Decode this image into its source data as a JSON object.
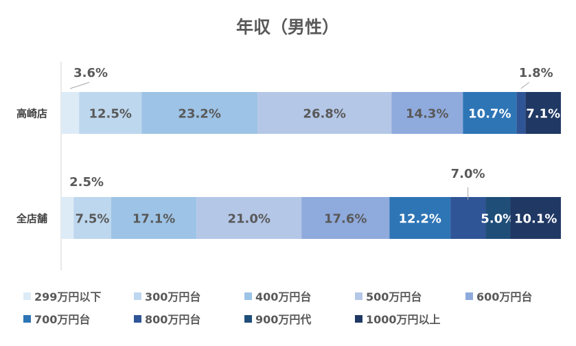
{
  "chart_data": {
    "type": "bar",
    "orientation": "horizontal",
    "stacked": "percent",
    "title": "年収（男性）",
    "categories": [
      "高崎店",
      "全店舗"
    ],
    "series": [
      {
        "name": "299万円以下",
        "color": "#DDEBF7",
        "label_color": "#595959",
        "values": [
          3.6,
          2.5
        ],
        "labels": [
          "3.6%",
          "2.5%"
        ]
      },
      {
        "name": "300万円台",
        "color": "#BDD7EE",
        "label_color": "#595959",
        "values": [
          12.5,
          7.5
        ],
        "labels": [
          "12.5%",
          "7.5%"
        ]
      },
      {
        "name": "400万円台",
        "color": "#9DC3E6",
        "label_color": "#595959",
        "values": [
          23.2,
          17.1
        ],
        "labels": [
          "23.2%",
          "17.1%"
        ]
      },
      {
        "name": "500万円台",
        "color": "#B4C7E7",
        "label_color": "#595959",
        "values": [
          26.8,
          21.0
        ],
        "labels": [
          "26.8%",
          "21.0%"
        ]
      },
      {
        "name": "600万円台",
        "color": "#8FAADC",
        "label_color": "#595959",
        "values": [
          14.3,
          17.6
        ],
        "labels": [
          "14.3%",
          "17.6%"
        ]
      },
      {
        "name": "700万円台",
        "color": "#2E75B6",
        "label_color": "#ffffff",
        "values": [
          10.7,
          12.2
        ],
        "labels": [
          "10.7%",
          "12.2%"
        ]
      },
      {
        "name": "800万円台",
        "color": "#2F5597",
        "label_color": "#ffffff",
        "values": [
          1.8,
          7.0
        ],
        "labels": [
          "1.8%",
          "7.0%"
        ]
      },
      {
        "name": "900万円代",
        "color": "#1F4E79",
        "label_color": "#ffffff",
        "values": [
          0,
          5.0
        ],
        "labels": [
          "",
          "5.0%"
        ]
      },
      {
        "name": "1000万円以上",
        "color": "#203864",
        "label_color": "#ffffff",
        "values": [
          7.1,
          10.1
        ],
        "labels": [
          "7.1%",
          "10.1%"
        ]
      }
    ],
    "outside_labels": [
      {
        "row": 0,
        "series": 0,
        "side": "left"
      },
      {
        "row": 0,
        "series": 6,
        "side": "right"
      },
      {
        "row": 1,
        "series": 0,
        "side": "left"
      },
      {
        "row": 1,
        "series": 6,
        "side": "mid"
      }
    ],
    "legend_position": "bottom",
    "grid": false
  }
}
